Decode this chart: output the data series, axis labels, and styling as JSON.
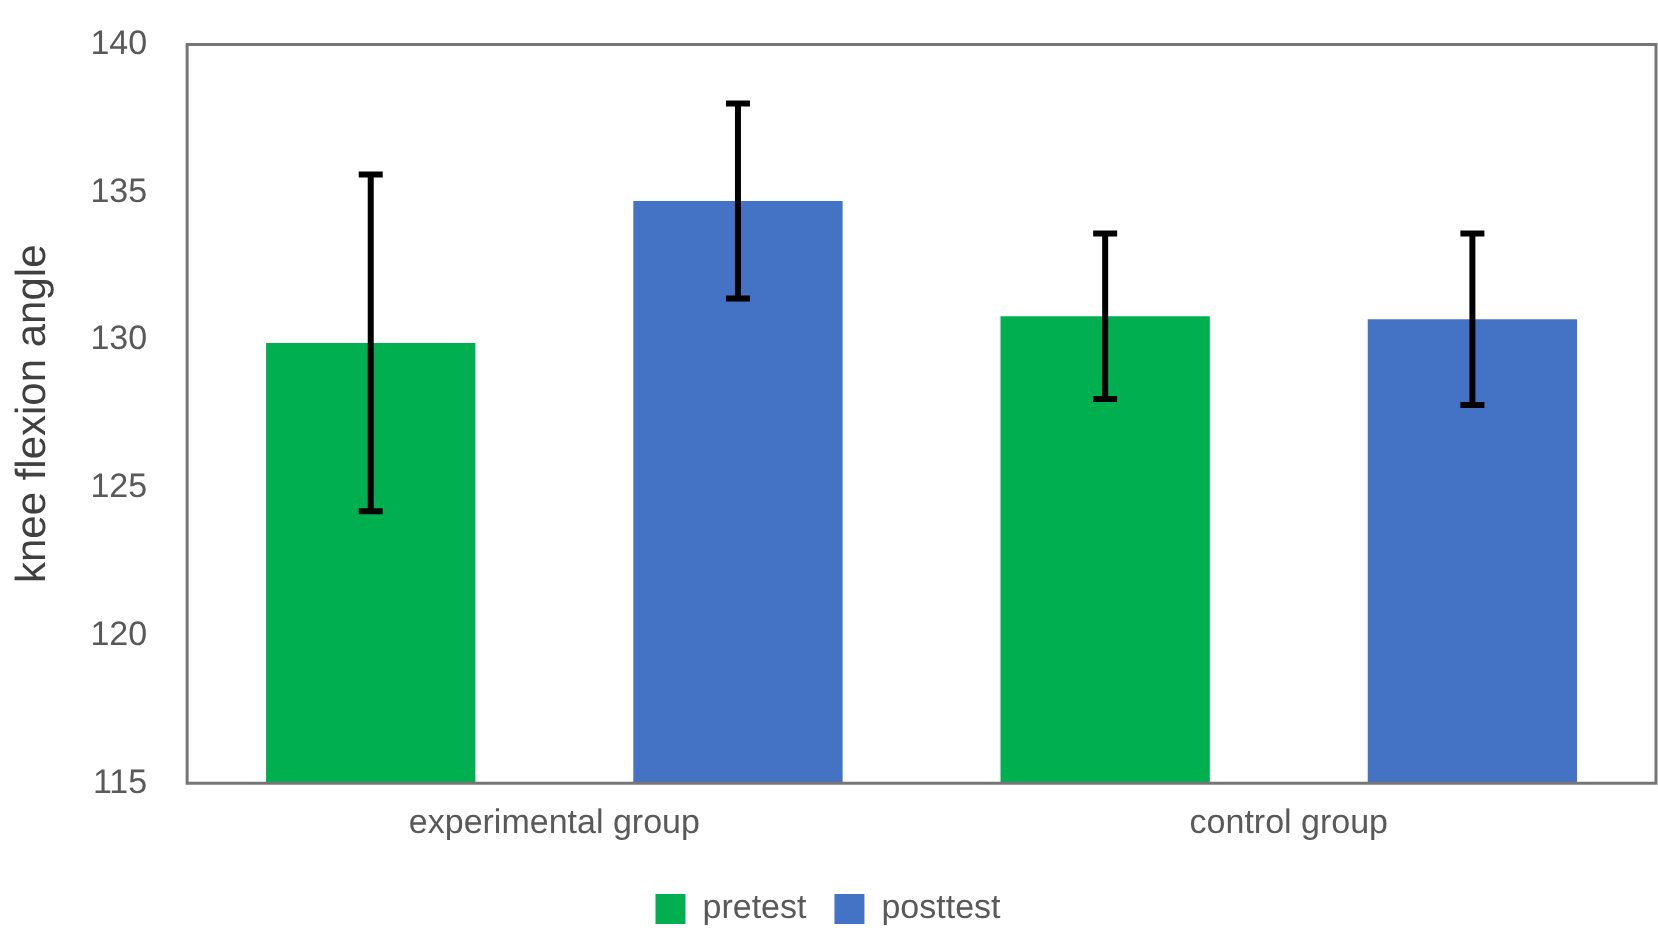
{
  "chart_data": {
    "type": "bar",
    "ylabel": "knee flexion angle",
    "categories": [
      "experimental group",
      "control group"
    ],
    "series": [
      {
        "name": "pretest",
        "color": "#00b050",
        "values": [
          129.9,
          130.8
        ],
        "errors": [
          5.7,
          2.8
        ]
      },
      {
        "name": "posttest",
        "color": "#4472c4",
        "values": [
          134.7,
          130.7
        ],
        "errors": [
          3.3,
          2.9
        ]
      }
    ],
    "ylim": [
      115,
      140
    ],
    "yticks": [
      115,
      120,
      125,
      130,
      135,
      140
    ],
    "grid": false,
    "legend": "bottom"
  }
}
